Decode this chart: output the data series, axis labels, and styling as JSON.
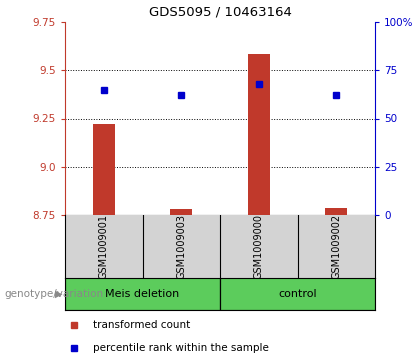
{
  "title": "GDS5095 / 10463164",
  "samples": [
    "GSM1009001",
    "GSM1009003",
    "GSM1009000",
    "GSM1009002"
  ],
  "groups": [
    "Meis deletion",
    "Meis deletion",
    "control",
    "control"
  ],
  "red_values": [
    9.22,
    8.782,
    9.585,
    8.785
  ],
  "blue_values": [
    65,
    62,
    68,
    62
  ],
  "ylim_left": [
    8.75,
    9.75
  ],
  "ylim_right": [
    0,
    100
  ],
  "yticks_left": [
    8.75,
    9.0,
    9.25,
    9.5,
    9.75
  ],
  "yticks_right": [
    0,
    25,
    50,
    75,
    100
  ],
  "ytick_labels_right": [
    "0",
    "25",
    "50",
    "75",
    "100%"
  ],
  "bar_base": 8.75,
  "bar_width": 0.28,
  "red_color": "#C0392B",
  "blue_color": "#0000CC",
  "bg_color": "#D3D3D3",
  "plot_bg": "white",
  "green_color": "#5CCC5C",
  "legend_red": "transformed count",
  "legend_blue": "percentile rank within the sample",
  "genotype_label": "genotype/variation"
}
